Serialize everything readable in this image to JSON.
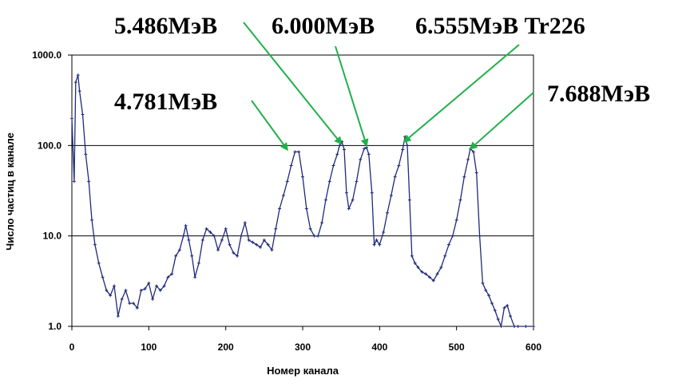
{
  "chart_data": {
    "type": "line",
    "title": "",
    "xlabel": "Номер канала",
    "ylabel": "Число частиц в канале",
    "xlim": [
      0,
      600
    ],
    "ylim": [
      1,
      1000
    ],
    "yscale": "log",
    "grid": "horizontal major lines at 10 and 100",
    "x_ticks": [
      0,
      100,
      200,
      300,
      400,
      500,
      600
    ],
    "x_tick_labels": [
      "0",
      "100",
      "200",
      "300",
      "400",
      "500",
      "600"
    ],
    "y_ticks": [
      1,
      10,
      100,
      1000
    ],
    "y_tick_labels": [
      "1.0",
      "10.0",
      "100.0",
      "1000.0"
    ],
    "line_color": "#1f2a7a",
    "arrow_color": "#22b04a",
    "annotations": [
      {
        "text": "5.486МэВ",
        "x": 350,
        "y": 105
      },
      {
        "text": "6.000МэВ",
        "x": 383,
        "y": 100
      },
      {
        "text": "6.555МэВ Tr226",
        "x": 432,
        "y": 110
      },
      {
        "text": "4.781МэВ",
        "x": 280,
        "y": 90
      },
      {
        "text": "7.688МэВ",
        "x": 518,
        "y": 92
      }
    ],
    "series": [
      {
        "x": [
          0,
          3,
          5,
          8,
          10,
          14,
          18,
          22,
          26,
          30,
          35,
          40,
          45,
          50,
          55,
          60,
          65,
          70,
          75,
          80,
          85,
          90,
          95,
          100,
          105,
          110,
          115,
          120,
          125,
          130,
          135,
          140,
          145,
          148,
          152,
          156,
          160,
          165,
          170,
          175,
          180,
          185,
          190,
          195,
          200,
          205,
          210,
          215,
          220,
          225,
          230,
          235,
          240,
          245,
          250,
          255,
          260,
          265,
          270,
          275,
          280,
          285,
          290,
          295,
          300,
          305,
          310,
          315,
          320,
          325,
          330,
          335,
          340,
          345,
          348,
          351,
          354,
          357,
          360,
          365,
          370,
          375,
          380,
          383,
          386,
          390,
          393,
          396,
          400,
          405,
          410,
          415,
          420,
          425,
          430,
          433,
          436,
          439,
          442,
          446,
          450,
          455,
          460,
          465,
          470,
          475,
          480,
          485,
          490,
          495,
          500,
          505,
          510,
          515,
          518,
          522,
          526,
          530,
          534,
          538,
          542,
          546,
          550,
          554,
          558,
          562,
          566,
          570,
          575,
          580,
          590,
          600
        ],
        "y": [
          200,
          40,
          500,
          600,
          400,
          220,
          80,
          40,
          15,
          8,
          5,
          3.5,
          2.5,
          2.2,
          2.8,
          1.3,
          2.0,
          2.5,
          1.8,
          1.8,
          1.6,
          2.5,
          2.6,
          3.0,
          2.0,
          2.8,
          2.5,
          2.8,
          3.5,
          3.8,
          6,
          7,
          10,
          13,
          9,
          6,
          3.5,
          5,
          9,
          12,
          11,
          10,
          7,
          9,
          12,
          8,
          6.5,
          6,
          10,
          14,
          9,
          8.5,
          8,
          7.5,
          9,
          8,
          7,
          12,
          20,
          28,
          40,
          60,
          85,
          85,
          45,
          20,
          12,
          10,
          10,
          14,
          25,
          40,
          60,
          80,
          100,
          110,
          90,
          30,
          20,
          25,
          40,
          70,
          92,
          95,
          80,
          30,
          8,
          9,
          8,
          11,
          18,
          28,
          45,
          60,
          90,
          125,
          100,
          25,
          6,
          5,
          4.5,
          4,
          3.8,
          3.5,
          3.2,
          3.8,
          4.5,
          6,
          8,
          10,
          15,
          25,
          45,
          70,
          92,
          85,
          50,
          10,
          3,
          2.5,
          2.2,
          1.8,
          1.5,
          1.2,
          1,
          1.6,
          1.7,
          1.3,
          1,
          1,
          1,
          1
        ]
      }
    ]
  }
}
